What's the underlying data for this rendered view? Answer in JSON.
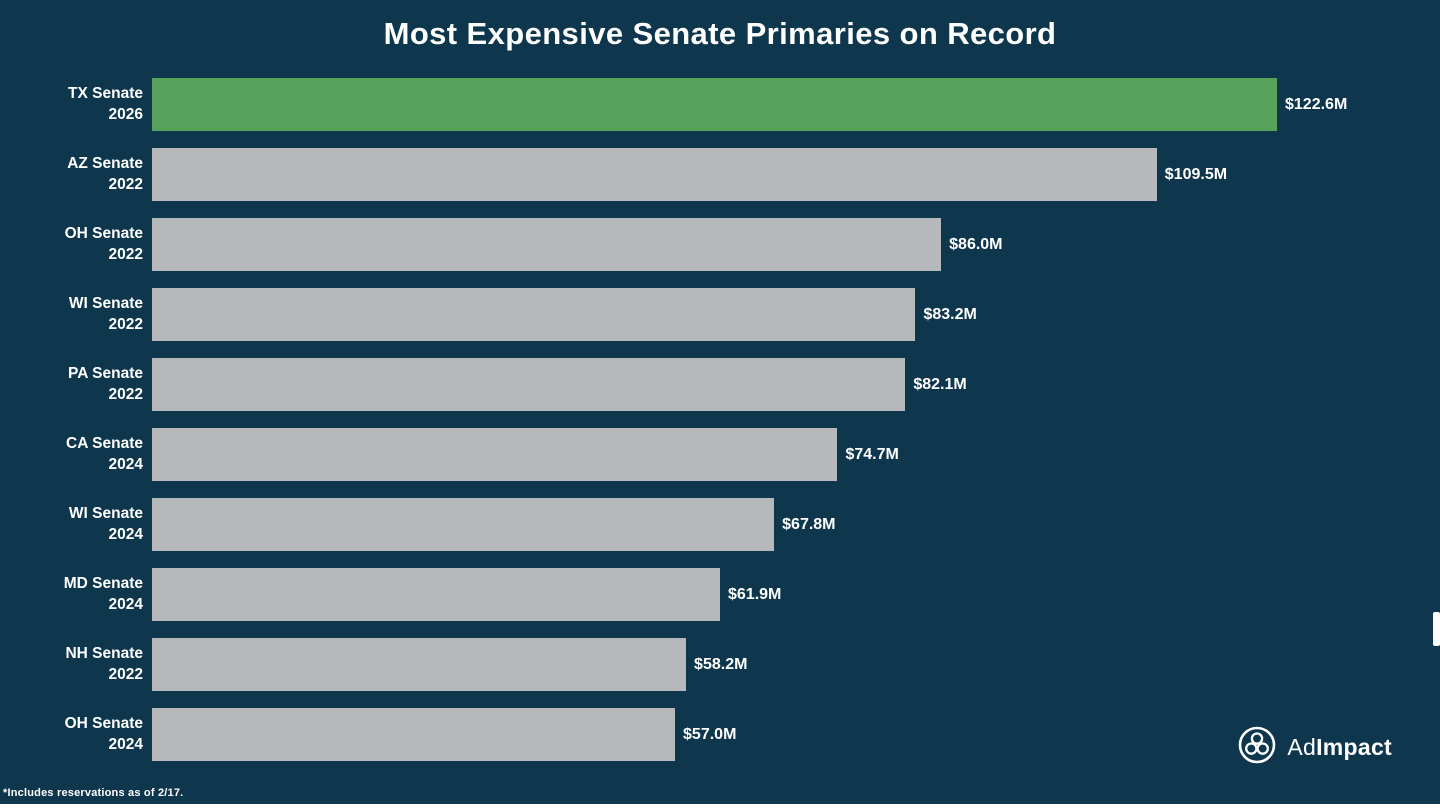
{
  "footnote": "*Includes reservations as of 2/17.",
  "logo": {
    "text_light": "Ad",
    "text_bold": "Impact"
  },
  "colors": {
    "background": "#0e374e",
    "bar_default": "#b5b9bb",
    "bar_highlight": "#57a35c",
    "text": "#ffffff"
  },
  "chart_data": {
    "type": "bar",
    "orientation": "horizontal",
    "title": "Most Expensive Senate Primaries on Record",
    "categories": [
      "TX Senate 2026",
      "AZ Senate 2022",
      "OH Senate 2022",
      "WI Senate 2022",
      "PA Senate 2022",
      "CA Senate 2024",
      "WI Senate 2024",
      "MD Senate 2024",
      "NH Senate 2022",
      "OH Senate 2024"
    ],
    "category_lines": [
      [
        "TX Senate",
        "2026"
      ],
      [
        "AZ Senate",
        "2022"
      ],
      [
        "OH Senate",
        "2022"
      ],
      [
        "WI Senate",
        "2022"
      ],
      [
        "PA Senate",
        "2022"
      ],
      [
        "CA Senate",
        "2024"
      ],
      [
        "WI Senate",
        "2024"
      ],
      [
        "MD Senate",
        "2024"
      ],
      [
        "NH Senate",
        "2022"
      ],
      [
        "OH Senate",
        "2024"
      ]
    ],
    "values": [
      122.6,
      109.5,
      86.0,
      83.2,
      82.1,
      74.7,
      67.8,
      61.9,
      58.2,
      57.0
    ],
    "value_labels": [
      "$122.6M",
      "$109.5M",
      "$86.0M",
      "$83.2M",
      "$82.1M",
      "$74.7M",
      "$67.8M",
      "$61.9M",
      "$58.2M",
      "$57.0M"
    ],
    "unit": "USD millions",
    "xlim": [
      0,
      122.6
    ],
    "highlight_index": 0,
    "highlight_category": "TX Senate 2026",
    "legend": "none",
    "grid": "off"
  }
}
